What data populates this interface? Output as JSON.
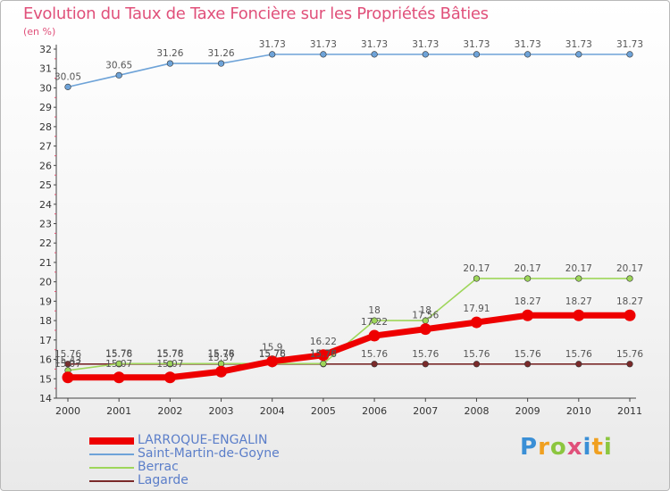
{
  "chart_data": {
    "type": "line",
    "title": "Evolution du Taux de Taxe Foncière sur les Propriétés Bâties",
    "unit_label": "(en %)",
    "xlabel": "",
    "ylabel": "(en %)",
    "ylim": [
      14,
      32
    ],
    "yticks": [
      "14",
      "15",
      "16",
      "17",
      "18",
      "19",
      "20",
      "21",
      "22",
      "23",
      "24",
      "25",
      "26",
      "27",
      "28",
      "29",
      "30",
      "31",
      "32"
    ],
    "categories": [
      "2000",
      "2001",
      "2002",
      "2003",
      "2004",
      "2005",
      "2006",
      "2007",
      "2008",
      "2009",
      "2010",
      "2011"
    ],
    "grid": false,
    "legend_position": "bottom-left",
    "series": [
      {
        "name": "Lagarde",
        "color": "#7a2a2a",
        "values": [
          15.76,
          15.76,
          15.76,
          15.76,
          15.76,
          15.76,
          15.76,
          15.76,
          15.76,
          15.76,
          15.76,
          15.76
        ],
        "labels": [
          "15.76",
          "15.76",
          "15.76",
          "15.76",
          "15.76",
          "15.76",
          "15.76",
          "15.76",
          "15.76",
          "15.76",
          "15.76",
          "15.76"
        ]
      },
      {
        "name": "Berrac",
        "color": "#9ed65a",
        "values": [
          15.43,
          15.78,
          15.78,
          15.78,
          15.78,
          15.78,
          18,
          18,
          20.17,
          20.17,
          20.17,
          20.17
        ],
        "labels": [
          "15.43",
          "15.78",
          "15.78",
          "15.78",
          "15.78",
          "15.78",
          "18",
          "18",
          "20.17",
          "20.17",
          "20.17",
          "20.17"
        ]
      },
      {
        "name": "Saint-Martin-de-Goyne",
        "color": "#6ea3d8",
        "values": [
          30.05,
          30.65,
          31.26,
          31.26,
          31.73,
          31.73,
          31.73,
          31.73,
          31.73,
          31.73,
          31.73,
          31.73
        ],
        "labels": [
          "30.05",
          "30.65",
          "31.26",
          "31.26",
          "31.73",
          "31.73",
          "31.73",
          "31.73",
          "31.73",
          "31.73",
          "31.73",
          "31.73"
        ]
      },
      {
        "name": "LARROQUE-ENGALIN",
        "color": "#ee0000",
        "values": [
          15.07,
          15.07,
          15.07,
          15.37,
          15.9,
          16.22,
          17.22,
          17.56,
          17.91,
          18.27,
          18.27,
          18.27
        ],
        "labels": [
          "15.07",
          "15.07",
          "15.07",
          "15.37",
          "15.9",
          "16.22",
          "17.22",
          "17.56",
          "17.91",
          "18.27",
          "18.27",
          "18.27"
        ]
      }
    ],
    "legend": [
      {
        "name": "LARROQUE-ENGALIN",
        "color": "#ee0000"
      },
      {
        "name": "Saint-Martin-de-Goyne",
        "color": "#6ea3d8"
      },
      {
        "name": "Berrac",
        "color": "#9ed65a"
      },
      {
        "name": "Lagarde",
        "color": "#7a2a2a"
      }
    ]
  },
  "logo": {
    "letters": [
      "P",
      "r",
      "o",
      "x",
      "i",
      "t",
      "i"
    ],
    "colors": [
      "#3a8fd6",
      "#f0a020",
      "#8cc63f",
      "#e0507a",
      "#3a8fd6",
      "#f0a020",
      "#8cc63f"
    ]
  }
}
